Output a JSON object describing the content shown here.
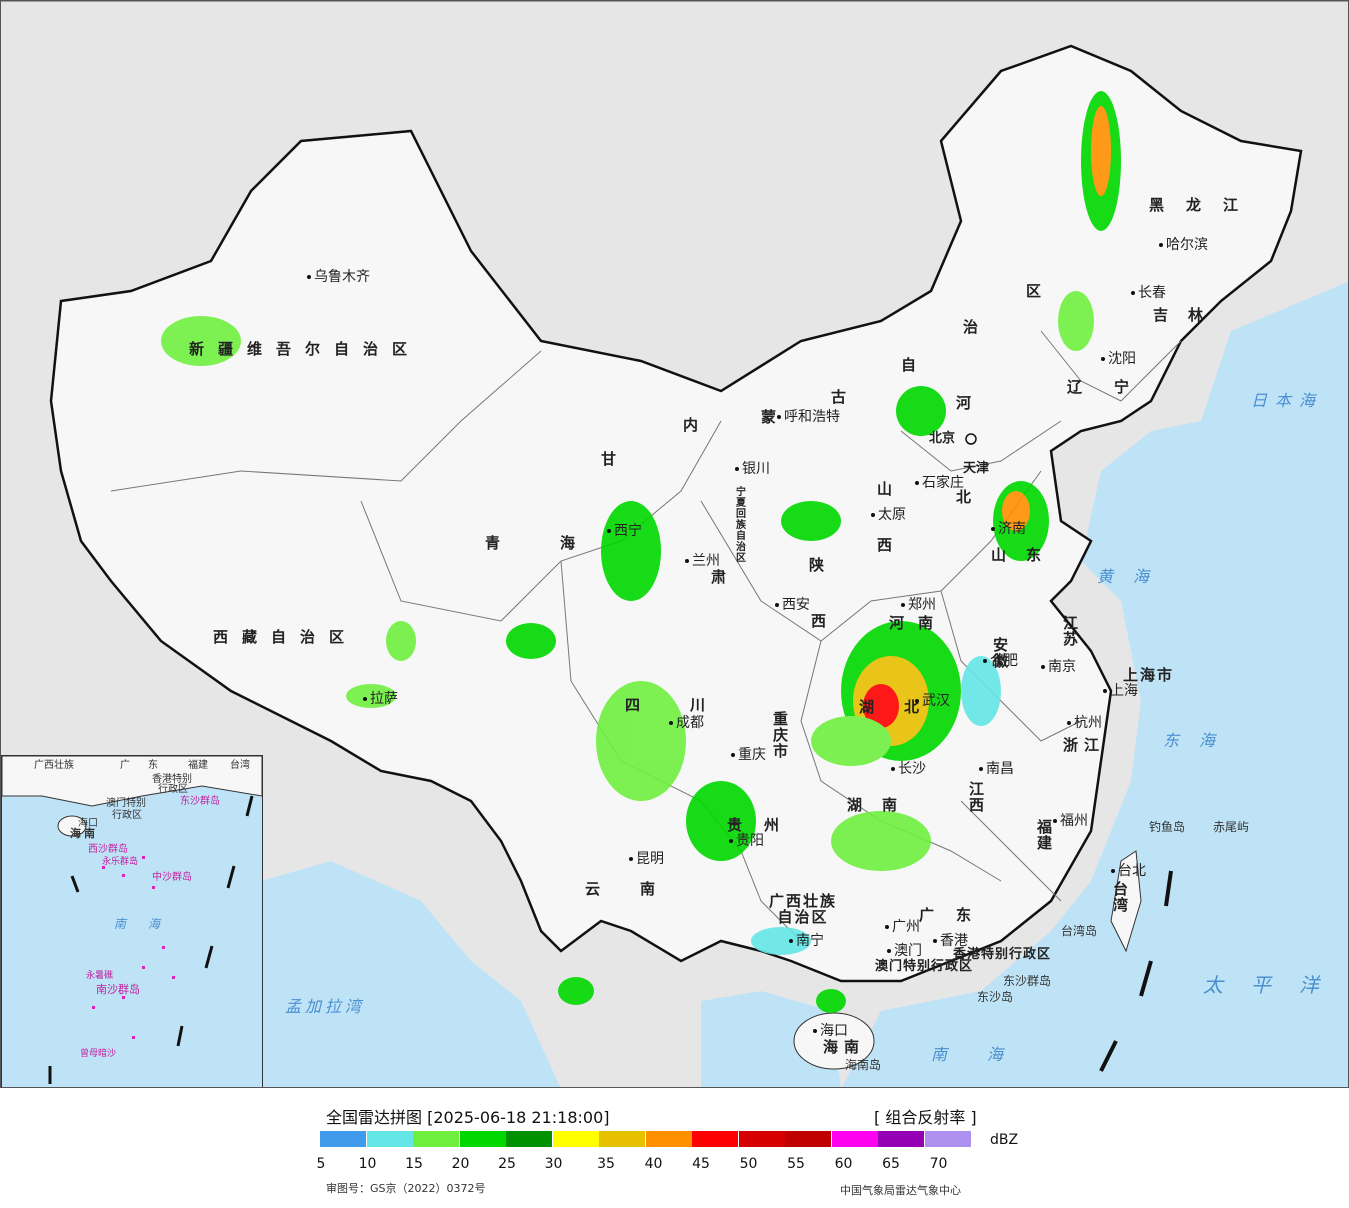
{
  "provinces": {
    "xinjiang": "新疆维吾尔自治区",
    "xizang": "西藏自治区",
    "qinghai": "青海",
    "gansu": "甘",
    "gansu2": "肃",
    "neimenggu": [
      "内",
      "蒙",
      "古",
      "自",
      "治",
      "区"
    ],
    "ningxia": "宁夏回族自治区",
    "shaanxi": "陕",
    "shaanxi2": "西",
    "shanxi": "山",
    "shanxi2": "西",
    "hebei": "河",
    "hebei2": "北",
    "shandong": "山",
    "shandong2": "东",
    "henan": "河南",
    "sichuan": "四川",
    "chongqing": "重庆市",
    "hubei": "湖北",
    "hunan": "湖南",
    "guizhou": "贵州",
    "yunnan": "云南",
    "guangxi": "广西壮族自治区",
    "guangdong": "广东",
    "jiangxi": "江西",
    "fujian": "福建",
    "zhejiang": "浙江",
    "jiangsu": "江苏",
    "anhui": "安徽",
    "heilongjiang": "黑龙江",
    "jilin": "吉林",
    "liaoning": "辽宁",
    "hainan": "海南",
    "taiwan": "台湾",
    "shanghai": "上海市",
    "hongkong": "香港特别行政区",
    "macau": "澳门特别行政区",
    "beijing": "北京",
    "tianjin": "天津"
  },
  "cities": {
    "urumqi": "乌鲁木齐",
    "lhasa": "拉萨",
    "xining": "西宁",
    "lanzhou": "兰州",
    "yinchuan": "银川",
    "hohhot": "呼和浩特",
    "taiyuan": "太原",
    "shijiazhuang": "石家庄",
    "jinan": "济南",
    "xian": "西安",
    "zhengzhou": "郑州",
    "chengdu": "成都",
    "chongqing": "重庆",
    "wuhan": "武汉",
    "changsha": "长沙",
    "guiyang": "贵阳",
    "kunming": "昆明",
    "nanning": "南宁",
    "guangzhou": "广州",
    "hongkong": "香港",
    "macau": "澳门",
    "nanchang": "南昌",
    "fuzhou": "福州",
    "hangzhou": "杭州",
    "nanjing": "南京",
    "hefei": "合肥",
    "shanghai": "上海",
    "harbin": "哈尔滨",
    "changchun": "长春",
    "shenyang": "沈阳",
    "haikou": "海口",
    "taibei": "台北"
  },
  "seas": {
    "riben": "日本海",
    "huang": "黄海",
    "dong": "东海",
    "taiping": "太平洋",
    "nan": "南海",
    "mengjiala": "孟加拉湾"
  },
  "islands": {
    "diaoyu": "钓鱼岛",
    "chiwei": "赤尾屿",
    "taiwan_dao": "台湾岛",
    "dongsha": "东沙群岛",
    "dongsha_dao": "东沙岛",
    "hainan_dao": "海南岛"
  },
  "inset": {
    "labels": [
      "广西壮族",
      "广",
      "东",
      "福建",
      "台湾",
      "澳门特别",
      "行政区",
      "香港特别",
      "行政区",
      "东沙群岛",
      "海口",
      "海",
      "南",
      "西沙群岛",
      "永乐群岛",
      "中沙群岛",
      "南",
      "海",
      "南沙群岛",
      "永暑礁",
      "曾母暗沙"
    ]
  },
  "legend": {
    "title": "全国雷达拼图 [2025-06-18 21:18:00]",
    "product": "[ 组合反射率 ]",
    "unit": "dBZ",
    "ticks": [
      "5",
      "10",
      "15",
      "20",
      "25",
      "30",
      "35",
      "40",
      "45",
      "50",
      "55",
      "60",
      "65",
      "70"
    ],
    "colors": [
      "#419bec",
      "#64e6e6",
      "#6ff03f",
      "#00d800",
      "#009100",
      "#ffff00",
      "#e7c000",
      "#ff9000",
      "#ff0000",
      "#d60000",
      "#c00000",
      "#ff00f0",
      "#9600b4",
      "#ad90f0"
    ],
    "approval": "审图号：GS京（2022）0372号",
    "org": "中国气象局雷达气象中心"
  },
  "colors": {
    "land": "#f7f7f7",
    "sea": "#bfe3f6",
    "neighbor": "#e6e6e6"
  }
}
